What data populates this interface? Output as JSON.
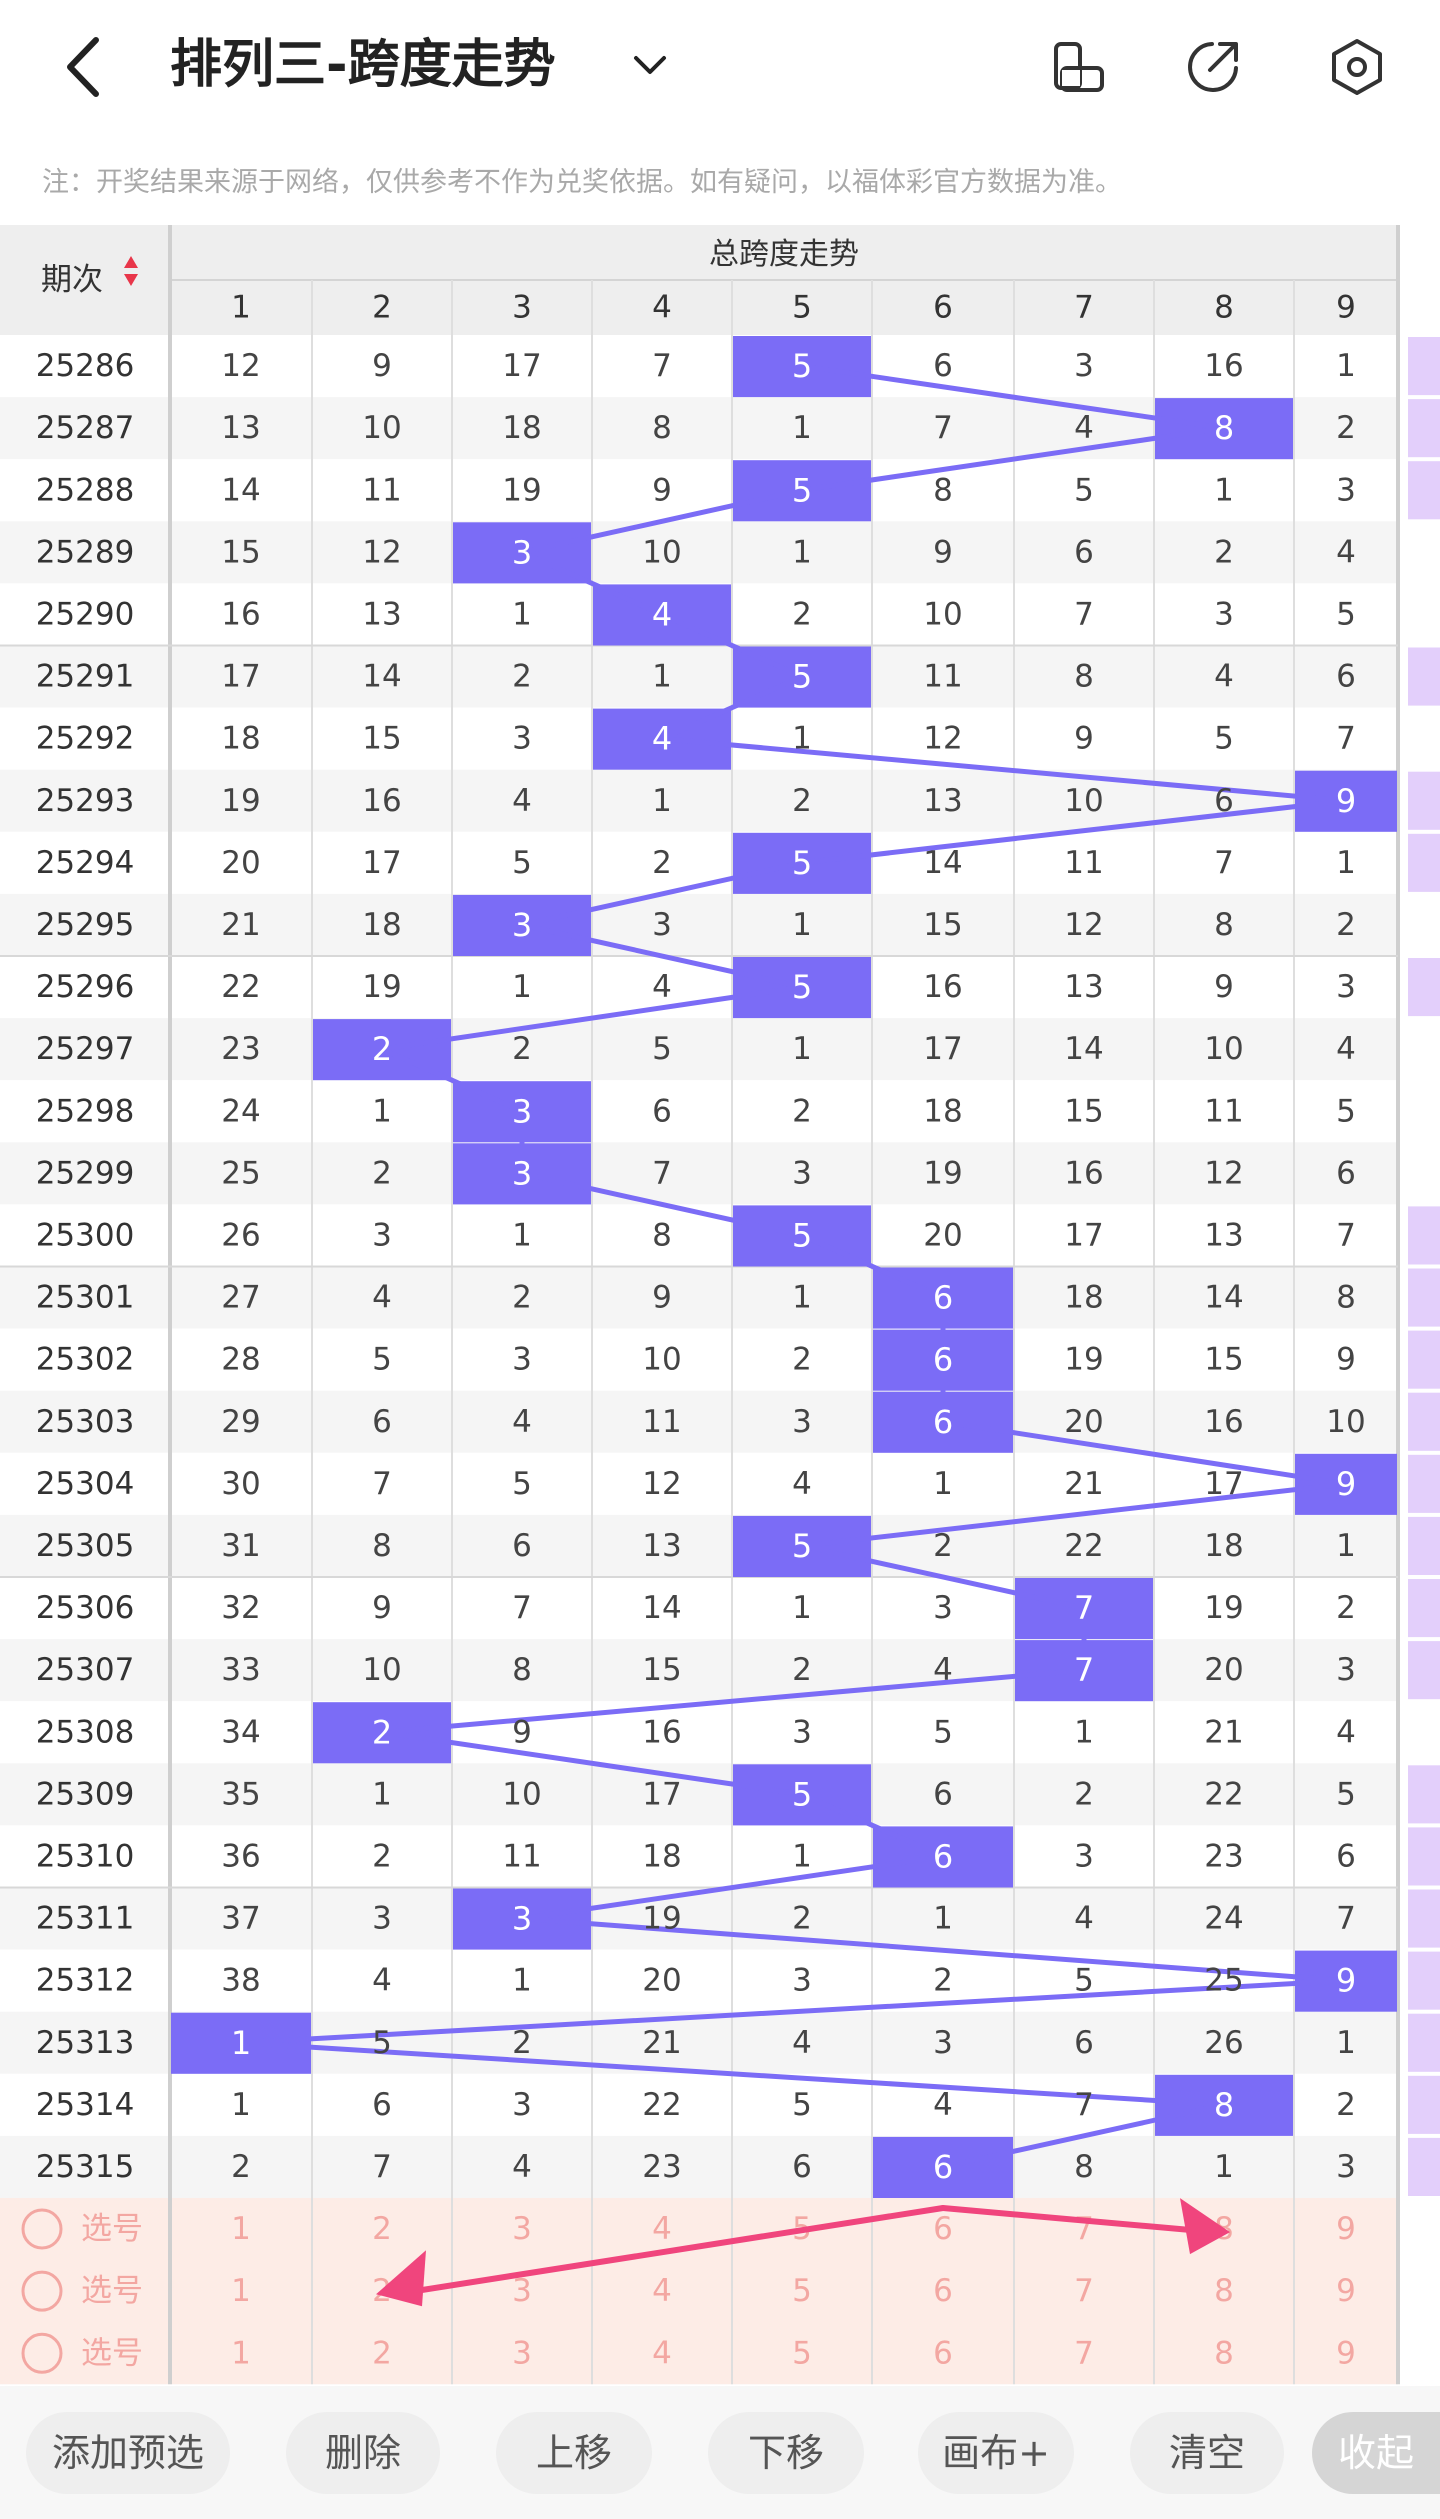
{
  "header": {
    "title": "排列三-跨度走势",
    "back_icon": "chevron-left-icon",
    "dropdown_icon": "chevron-down-icon",
    "actions": [
      "phone-rotate-icon",
      "share-icon",
      "settings-hexagon-icon"
    ]
  },
  "notice": "注：开奖结果来源于网络，仅供参考不作为兑奖依据。如有疑问，以福体彩官方数据为准。",
  "table": {
    "issue_header": "期次",
    "group_header": "总跨度走势",
    "columns": [
      "1",
      "2",
      "3",
      "4",
      "5",
      "6",
      "7",
      "8",
      "9"
    ],
    "rows": [
      {
        "issue": "25286",
        "values": [
          12,
          9,
          17,
          7,
          5,
          6,
          3,
          16,
          1
        ],
        "hit": 5
      },
      {
        "issue": "25287",
        "values": [
          13,
          10,
          18,
          8,
          1,
          7,
          4,
          8,
          2
        ],
        "hit": 8
      },
      {
        "issue": "25288",
        "values": [
          14,
          11,
          19,
          9,
          5,
          8,
          5,
          1,
          3
        ],
        "hit": 5
      },
      {
        "issue": "25289",
        "values": [
          15,
          12,
          3,
          10,
          1,
          9,
          6,
          2,
          4
        ],
        "hit": 3
      },
      {
        "issue": "25290",
        "values": [
          16,
          13,
          1,
          4,
          2,
          10,
          7,
          3,
          5
        ],
        "hit": 4
      },
      {
        "issue": "25291",
        "values": [
          17,
          14,
          2,
          1,
          5,
          11,
          8,
          4,
          6
        ],
        "hit": 5
      },
      {
        "issue": "25292",
        "values": [
          18,
          15,
          3,
          4,
          1,
          12,
          9,
          5,
          7
        ],
        "hit": 4
      },
      {
        "issue": "25293",
        "values": [
          19,
          16,
          4,
          1,
          2,
          13,
          10,
          6,
          9
        ],
        "hit": 9
      },
      {
        "issue": "25294",
        "values": [
          20,
          17,
          5,
          2,
          5,
          14,
          11,
          7,
          1
        ],
        "hit": 5
      },
      {
        "issue": "25295",
        "values": [
          21,
          18,
          3,
          3,
          1,
          15,
          12,
          8,
          2
        ],
        "hit": 3
      },
      {
        "issue": "25296",
        "values": [
          22,
          19,
          1,
          4,
          5,
          16,
          13,
          9,
          3
        ],
        "hit": 5
      },
      {
        "issue": "25297",
        "values": [
          23,
          2,
          2,
          5,
          1,
          17,
          14,
          10,
          4
        ],
        "hit": 2
      },
      {
        "issue": "25298",
        "values": [
          24,
          1,
          3,
          6,
          2,
          18,
          15,
          11,
          5
        ],
        "hit": 3
      },
      {
        "issue": "25299",
        "values": [
          25,
          2,
          3,
          7,
          3,
          19,
          16,
          12,
          6
        ],
        "hit": 3
      },
      {
        "issue": "25300",
        "values": [
          26,
          3,
          1,
          8,
          5,
          20,
          17,
          13,
          7
        ],
        "hit": 5
      },
      {
        "issue": "25301",
        "values": [
          27,
          4,
          2,
          9,
          1,
          6,
          18,
          14,
          8
        ],
        "hit": 6
      },
      {
        "issue": "25302",
        "values": [
          28,
          5,
          3,
          10,
          2,
          6,
          19,
          15,
          9
        ],
        "hit": 6
      },
      {
        "issue": "25303",
        "values": [
          29,
          6,
          4,
          11,
          3,
          6,
          20,
          16,
          10
        ],
        "hit": 6
      },
      {
        "issue": "25304",
        "values": [
          30,
          7,
          5,
          12,
          4,
          1,
          21,
          17,
          9
        ],
        "hit": 9
      },
      {
        "issue": "25305",
        "values": [
          31,
          8,
          6,
          13,
          5,
          2,
          22,
          18,
          1
        ],
        "hit": 5
      },
      {
        "issue": "25306",
        "values": [
          32,
          9,
          7,
          14,
          1,
          3,
          7,
          19,
          2
        ],
        "hit": 7
      },
      {
        "issue": "25307",
        "values": [
          33,
          10,
          8,
          15,
          2,
          4,
          7,
          20,
          3
        ],
        "hit": 7
      },
      {
        "issue": "25308",
        "values": [
          34,
          2,
          9,
          16,
          3,
          5,
          1,
          21,
          4
        ],
        "hit": 2
      },
      {
        "issue": "25309",
        "values": [
          35,
          1,
          10,
          17,
          5,
          6,
          2,
          22,
          5
        ],
        "hit": 5
      },
      {
        "issue": "25310",
        "values": [
          36,
          2,
          11,
          18,
          1,
          6,
          3,
          23,
          6
        ],
        "hit": 6
      },
      {
        "issue": "25311",
        "values": [
          37,
          3,
          3,
          19,
          2,
          1,
          4,
          24,
          7
        ],
        "hit": 3
      },
      {
        "issue": "25312",
        "values": [
          38,
          4,
          1,
          20,
          3,
          2,
          5,
          25,
          9
        ],
        "hit": 9
      },
      {
        "issue": "25313",
        "values": [
          1,
          5,
          2,
          21,
          4,
          3,
          6,
          26,
          1
        ],
        "hit": 1
      },
      {
        "issue": "25314",
        "values": [
          1,
          6,
          3,
          22,
          5,
          4,
          7,
          8,
          2
        ],
        "hit": 8
      },
      {
        "issue": "25315",
        "values": [
          2,
          7,
          4,
          23,
          6,
          6,
          8,
          1,
          3
        ],
        "hit": 6
      }
    ],
    "pick_rows": [
      {
        "label": "选号",
        "numbers": [
          "1",
          "2",
          "3",
          "4",
          "5",
          "6",
          "7",
          "8",
          "9"
        ]
      },
      {
        "label": "选号",
        "numbers": [
          "1",
          "2",
          "3",
          "4",
          "5",
          "6",
          "7",
          "8",
          "9"
        ]
      },
      {
        "label": "选号",
        "numbers": [
          "1",
          "2",
          "3",
          "4",
          "5",
          "6",
          "7",
          "8",
          "9"
        ]
      }
    ],
    "side_marks": [
      0,
      1,
      2,
      5,
      7,
      8,
      10,
      14,
      15,
      16,
      17,
      18,
      19,
      20,
      21,
      23,
      24,
      25,
      26,
      27,
      28,
      29
    ]
  },
  "toolbar": {
    "buttons": [
      "添加预选",
      "删除",
      "上移",
      "下移",
      "画布+",
      "清空",
      "收起"
    ]
  },
  "colors": {
    "hit": "#7b6cf6",
    "line": "#7b6cf6",
    "arrow": "#f0457d",
    "pick_bg": "#fdece6",
    "pick_text": "#f3a7a2",
    "side_mark": "#e3cffb"
  }
}
